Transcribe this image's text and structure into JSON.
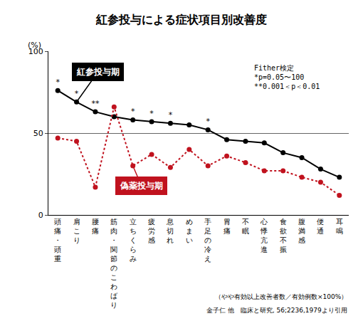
{
  "chart_data": {
    "type": "line",
    "title": "紅参投与による症状項目別改善度",
    "y_label": "(%)",
    "categories": [
      "頭痛・頭重",
      "肩こり",
      "腰痛",
      "筋肉・関節のこわばり",
      "立ちくらみ",
      "疲労感",
      "息切れ",
      "めまい",
      "手足の冷え",
      "胃痛",
      "不眠",
      "心悸亢進",
      "食欲不振",
      "腹満感",
      "便通",
      "耳鳴"
    ],
    "series": [
      {
        "name": "紅参投与期",
        "color": "#000000",
        "line_style": "solid",
        "marker": "circle",
        "values": [
          76,
          69,
          63,
          60,
          58,
          57,
          56,
          55,
          52,
          46,
          45,
          44,
          38,
          35,
          28,
          23
        ],
        "significance": [
          "*",
          "*",
          "**",
          null,
          "*",
          "*",
          "*",
          null,
          "*",
          null,
          null,
          null,
          null,
          null,
          null,
          null
        ]
      },
      {
        "name": "偽薬投与期",
        "color": "#c0121e",
        "line_style": "dot",
        "marker": "circle",
        "values": [
          47,
          45,
          17,
          66,
          30,
          37,
          29,
          40,
          30,
          36,
          32,
          27,
          27,
          23,
          20,
          12
        ]
      }
    ],
    "ylim": [
      0,
      100
    ],
    "yticks": [
      0,
      50,
      100
    ],
    "grid": true,
    "test_note": [
      "Fither検定",
      "*p=0.05〜100",
      "**0.001＜p＜0.01"
    ],
    "note": "（やや有効以上改善者数／有効例数×100%）",
    "source": "金子仁 他　臨床と研究, 56;2236,1979より引用"
  }
}
